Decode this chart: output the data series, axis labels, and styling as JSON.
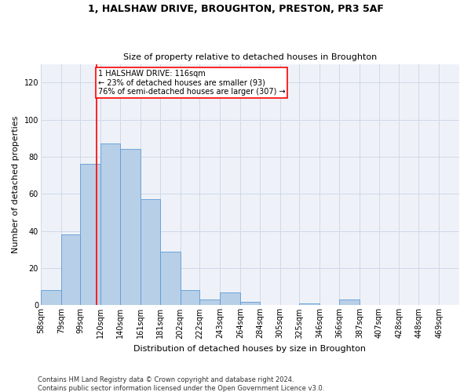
{
  "title1": "1, HALSHAW DRIVE, BROUGHTON, PRESTON, PR3 5AF",
  "title2": "Size of property relative to detached houses in Broughton",
  "xlabel": "Distribution of detached houses by size in Broughton",
  "ylabel": "Number of detached properties",
  "footer1": "Contains HM Land Registry data © Crown copyright and database right 2024.",
  "footer2": "Contains public sector information licensed under the Open Government Licence v3.0.",
  "annotation_line1": "1 HALSHAW DRIVE: 116sqm",
  "annotation_line2": "← 23% of detached houses are smaller (93)",
  "annotation_line3": "76% of semi-detached houses are larger (307) →",
  "categories": [
    "58sqm",
    "79sqm",
    "99sqm",
    "120sqm",
    "140sqm",
    "161sqm",
    "181sqm",
    "202sqm",
    "222sqm",
    "243sqm",
    "264sqm",
    "284sqm",
    "305sqm",
    "325sqm",
    "346sqm",
    "366sqm",
    "387sqm",
    "407sqm",
    "428sqm",
    "448sqm",
    "469sqm"
  ],
  "bar_heights": [
    8,
    38,
    76,
    87,
    84,
    57,
    29,
    8,
    3,
    7,
    2,
    0,
    0,
    1,
    0,
    3,
    0,
    0,
    0,
    0,
    0
  ],
  "bin_lefts": [
    58,
    79,
    99,
    120,
    140,
    161,
    181,
    202,
    222,
    243,
    264,
    284,
    305,
    325,
    346,
    366,
    387,
    407,
    428,
    448,
    469
  ],
  "bar_color": "#b8cfe8",
  "bar_edge_color": "#5b9bd5",
  "property_line_x": 116,
  "grid_color": "#d0d8e8",
  "bg_color": "#eef2f8",
  "ylim_max": 130,
  "yticks": [
    0,
    20,
    40,
    60,
    80,
    100,
    120
  ],
  "title1_fontsize": 9,
  "title2_fontsize": 8,
  "annotation_fontsize": 7,
  "ylabel_fontsize": 8,
  "xlabel_fontsize": 8,
  "tick_fontsize": 7,
  "footer_fontsize": 6
}
